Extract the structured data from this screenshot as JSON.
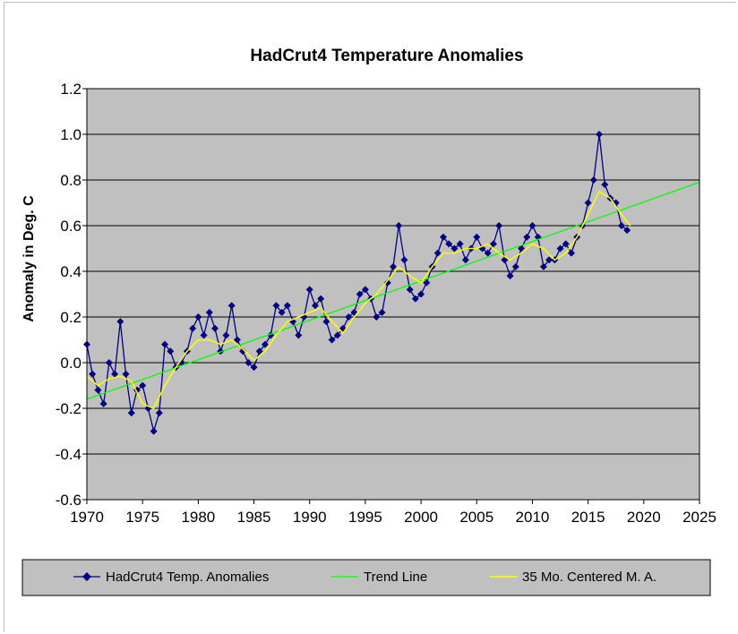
{
  "chart_data": {
    "type": "line",
    "title": "HadCrut4 Temperature Anomalies",
    "xlabel": "",
    "ylabel": "Anomaly in Deg. C",
    "xlim": [
      1970,
      2025
    ],
    "ylim": [
      -0.6,
      1.2
    ],
    "x_ticks": [
      "1970",
      "1975",
      "1980",
      "1985",
      "1990",
      "1995",
      "2000",
      "2005",
      "2010",
      "2015",
      "2020",
      "2025"
    ],
    "y_ticks": [
      "1.2",
      "1.0",
      "0.8",
      "0.6",
      "0.4",
      "0.2",
      "0.0",
      "-0.2",
      "-0.4",
      "-0.6"
    ],
    "grid": true,
    "legend_position": "bottom",
    "colors": {
      "plot_bg": "#c0c0c0",
      "anomalies": "#000080",
      "trend": "#00ff00",
      "moving_average": "#ffff00",
      "legend_bg": "#c0c0c0"
    },
    "series": [
      {
        "name": "HadCrut4 Temp. Anomalies",
        "marker": "diamond",
        "x": [
          1970.0,
          1970.5,
          1971.0,
          1971.5,
          1972.0,
          1972.5,
          1973.0,
          1973.5,
          1974.0,
          1974.5,
          1975.0,
          1975.5,
          1976.0,
          1976.5,
          1977.0,
          1977.5,
          1978.0,
          1978.5,
          1979.0,
          1979.5,
          1980.0,
          1980.5,
          1981.0,
          1981.5,
          1982.0,
          1982.5,
          1983.0,
          1983.5,
          1984.0,
          1984.5,
          1985.0,
          1985.5,
          1986.0,
          1986.5,
          1987.0,
          1987.5,
          1988.0,
          1988.5,
          1989.0,
          1989.5,
          1990.0,
          1990.5,
          1991.0,
          1991.5,
          1992.0,
          1992.5,
          1993.0,
          1993.5,
          1994.0,
          1994.5,
          1995.0,
          1995.5,
          1996.0,
          1996.5,
          1997.0,
          1997.5,
          1998.0,
          1998.5,
          1999.0,
          1999.5,
          2000.0,
          2000.5,
          2001.0,
          2001.5,
          2002.0,
          2002.5,
          2003.0,
          2003.5,
          2004.0,
          2004.5,
          2005.0,
          2005.5,
          2006.0,
          2006.5,
          2007.0,
          2007.5,
          2008.0,
          2008.5,
          2009.0,
          2009.5,
          2010.0,
          2010.5,
          2011.0,
          2011.5,
          2012.0,
          2012.5,
          2013.0,
          2013.5,
          2014.0,
          2014.5,
          2015.0,
          2015.5,
          2016.0,
          2016.5,
          2017.0,
          2017.5,
          2018.0,
          2018.5
        ],
        "values": [
          0.08,
          -0.05,
          -0.12,
          -0.18,
          0.0,
          -0.05,
          0.18,
          -0.05,
          -0.22,
          -0.12,
          -0.1,
          -0.2,
          -0.3,
          -0.22,
          0.08,
          0.05,
          -0.02,
          0.0,
          0.05,
          0.15,
          0.2,
          0.12,
          0.22,
          0.15,
          0.05,
          0.12,
          0.25,
          0.1,
          0.05,
          0.0,
          -0.02,
          0.05,
          0.08,
          0.12,
          0.25,
          0.22,
          0.25,
          0.18,
          0.12,
          0.2,
          0.32,
          0.25,
          0.28,
          0.18,
          0.1,
          0.12,
          0.15,
          0.2,
          0.22,
          0.3,
          0.32,
          0.28,
          0.2,
          0.22,
          0.35,
          0.42,
          0.6,
          0.45,
          0.32,
          0.28,
          0.3,
          0.35,
          0.42,
          0.48,
          0.55,
          0.52,
          0.5,
          0.52,
          0.45,
          0.5,
          0.55,
          0.5,
          0.48,
          0.52,
          0.6,
          0.45,
          0.38,
          0.42,
          0.5,
          0.55,
          0.6,
          0.55,
          0.42,
          0.45,
          0.45,
          0.5,
          0.52,
          0.48,
          0.55,
          0.6,
          0.7,
          0.8,
          1.0,
          0.78,
          0.72,
          0.7,
          0.6,
          0.58
        ]
      },
      {
        "name": "Trend Line",
        "x": [
          1970,
          2025
        ],
        "values": [
          -0.16,
          0.79
        ]
      },
      {
        "name": "35 Mo. Centered M. A.",
        "x": [
          1970.0,
          1971.0,
          1972.0,
          1973.0,
          1974.0,
          1975.0,
          1976.0,
          1977.0,
          1978.0,
          1979.0,
          1980.0,
          1981.0,
          1982.0,
          1983.0,
          1984.0,
          1985.0,
          1986.0,
          1987.0,
          1988.0,
          1989.0,
          1990.0,
          1991.0,
          1992.0,
          1993.0,
          1994.0,
          1995.0,
          1996.0,
          1997.0,
          1998.0,
          1999.0,
          2000.0,
          2001.0,
          2002.0,
          2003.0,
          2004.0,
          2005.0,
          2006.0,
          2007.0,
          2008.0,
          2009.0,
          2010.0,
          2011.0,
          2012.0,
          2013.0,
          2014.0,
          2015.0,
          2016.0,
          2017.0,
          2018.0,
          2018.8
        ],
        "values": [
          -0.06,
          -0.1,
          -0.07,
          -0.06,
          -0.08,
          -0.18,
          -0.2,
          -0.1,
          -0.02,
          0.05,
          0.1,
          0.1,
          0.08,
          0.1,
          0.06,
          0.01,
          0.05,
          0.12,
          0.18,
          0.2,
          0.22,
          0.24,
          0.18,
          0.13,
          0.2,
          0.26,
          0.3,
          0.36,
          0.42,
          0.38,
          0.35,
          0.42,
          0.48,
          0.48,
          0.5,
          0.5,
          0.52,
          0.48,
          0.45,
          0.48,
          0.52,
          0.5,
          0.45,
          0.48,
          0.55,
          0.65,
          0.75,
          0.72,
          0.65,
          0.6
        ]
      }
    ]
  }
}
